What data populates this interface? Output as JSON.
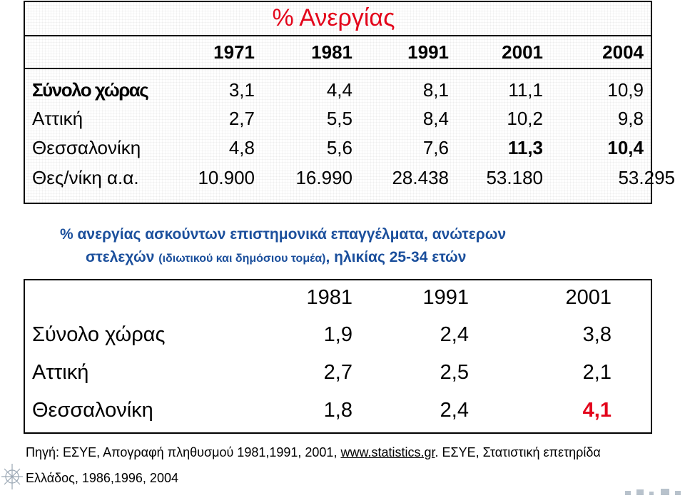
{
  "table1": {
    "title": "% Ανεργίας",
    "years": [
      "1971",
      "1981",
      "1991",
      "2001",
      "2004"
    ],
    "rows": [
      {
        "label": "Σύνολο χώρας",
        "values": [
          "3,1",
          "4,4",
          "8,1",
          "11,1",
          "10,9"
        ]
      },
      {
        "label": "Αττική",
        "values": [
          "2,7",
          "5,5",
          "8,4",
          "10,2",
          "9,8"
        ]
      },
      {
        "label": "Θεσσαλονίκη",
        "values": [
          "4,8",
          "5,6",
          "7,6",
          "11,3",
          "10,4"
        ]
      },
      {
        "label": "Θες/νίκη α.α.",
        "values": [
          "10.900",
          "16.990",
          "28.438",
          "53.180",
          "53.295"
        ]
      }
    ]
  },
  "subtitle": {
    "line1": "% ανεργίας ασκούντων επιστημονικά επαγγέλματα, ανώτερων",
    "line2_a": "στελεχών ",
    "line2_b": "(ιδιωτικού και δημόσιου τομέα)",
    "line2_c": ", ηλικίας 25-34 ετών"
  },
  "table2": {
    "years": [
      "1981",
      "1991",
      "2001"
    ],
    "rows": [
      {
        "label": "Σύνολο χώρας",
        "values": [
          "1,9",
          "2,4",
          "3,8"
        ]
      },
      {
        "label": "Αττική",
        "values": [
          "2,7",
          "2,5",
          "2,1"
        ]
      },
      {
        "label": "Θεσσαλονίκη",
        "values": [
          "1,8",
          "2,4",
          "4,1"
        ]
      }
    ],
    "highlight_color": "#e3051b"
  },
  "source": {
    "line1_a": "Πηγή: ΕΣΥΕ, Απογραφή πληθυσμού 1981,1991, 2001, ",
    "line1_link": "www.statistics.gr",
    "line1_b": ". ΕΣΥΕ, Στατιστική επετηρίδα",
    "line2": "Ελλάδος, 1986,1996, 2004"
  },
  "colors": {
    "title_red": "#e3051b",
    "subtitle_blue": "#1b4f9c"
  }
}
